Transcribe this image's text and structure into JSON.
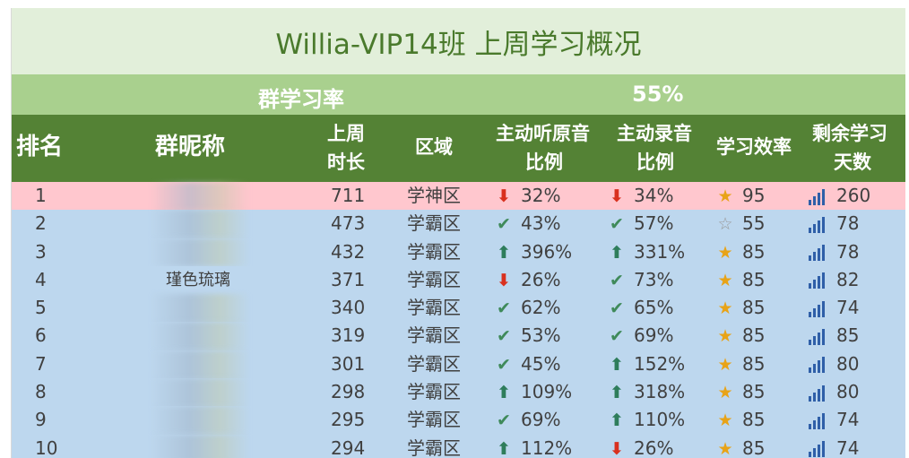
{
  "title": "Willia-VIP14班 上周学习概况",
  "summary": {
    "label": "群学习率",
    "value": "55%"
  },
  "headers": {
    "rank": "排名",
    "nickname": "群昵称",
    "hours_1": "上周",
    "hours_2": "时长",
    "zone": "区域",
    "listen_1": "主动听原音",
    "listen_2": "比例",
    "record_1": "主动录音",
    "record_2": "比例",
    "efficiency": "学习效率",
    "days_1": "剩余学习",
    "days_2": "天数"
  },
  "rows": [
    {
      "rank": "1",
      "nick": "",
      "hours": "711",
      "zone": "学神区",
      "listen_icon": "down-arrow-icon",
      "listen": "32%",
      "record_icon": "down-arrow-icon",
      "record": "34%",
      "eff_icon": "star-gold-icon",
      "eff": "95",
      "days": "260",
      "highlight": true
    },
    {
      "rank": "2",
      "nick": "",
      "hours": "473",
      "zone": "学霸区",
      "listen_icon": "check-icon",
      "listen": "43%",
      "record_icon": "check-icon",
      "record": "57%",
      "eff_icon": "star-white-icon",
      "eff": "55",
      "days": "78"
    },
    {
      "rank": "3",
      "nick": "",
      "hours": "432",
      "zone": "学霸区",
      "listen_icon": "up-arrow-icon",
      "listen": "396%",
      "record_icon": "up-arrow-icon",
      "record": "331%",
      "eff_icon": "star-gold-icon",
      "eff": "85",
      "days": "78"
    },
    {
      "rank": "4",
      "nick": "瑾色琉璃",
      "hours": "371",
      "zone": "学霸区",
      "listen_icon": "down-arrow-icon",
      "listen": "26%",
      "record_icon": "check-icon",
      "record": "73%",
      "eff_icon": "star-gold-icon",
      "eff": "85",
      "days": "82"
    },
    {
      "rank": "5",
      "nick": "",
      "hours": "340",
      "zone": "学霸区",
      "listen_icon": "check-icon",
      "listen": "62%",
      "record_icon": "check-icon",
      "record": "65%",
      "eff_icon": "star-gold-icon",
      "eff": "85",
      "days": "74"
    },
    {
      "rank": "6",
      "nick": "",
      "hours": "319",
      "zone": "学霸区",
      "listen_icon": "check-icon",
      "listen": "53%",
      "record_icon": "check-icon",
      "record": "69%",
      "eff_icon": "star-gold-icon",
      "eff": "85",
      "days": "85"
    },
    {
      "rank": "7",
      "nick": "",
      "hours": "301",
      "zone": "学霸区",
      "listen_icon": "check-icon",
      "listen": "45%",
      "record_icon": "up-arrow-icon",
      "record": "152%",
      "eff_icon": "star-gold-icon",
      "eff": "85",
      "days": "80"
    },
    {
      "rank": "8",
      "nick": "",
      "hours": "298",
      "zone": "学霸区",
      "listen_icon": "up-arrow-icon",
      "listen": "109%",
      "record_icon": "up-arrow-icon",
      "record": "318%",
      "eff_icon": "star-gold-icon",
      "eff": "85",
      "days": "80"
    },
    {
      "rank": "9",
      "nick": "",
      "hours": "295",
      "zone": "学霸区",
      "listen_icon": "check-icon",
      "listen": "69%",
      "record_icon": "up-arrow-icon",
      "record": "110%",
      "eff_icon": "star-gold-icon",
      "eff": "85",
      "days": "74"
    },
    {
      "rank": "10",
      "nick": "",
      "hours": "294",
      "zone": "学霸区",
      "listen_icon": "up-arrow-icon",
      "listen": "112%",
      "record_icon": "down-arrow-icon",
      "record": "26%",
      "eff_icon": "star-gold-icon",
      "eff": "85",
      "days": "74"
    }
  ],
  "colors": {
    "title_bg": "#e2efda",
    "title_text": "#4a7a2c",
    "summary_bg": "#a9d08e",
    "header_bg": "#548235",
    "row_bg": "#bdd7ee",
    "highlight_bg": "#ffc7ce"
  }
}
